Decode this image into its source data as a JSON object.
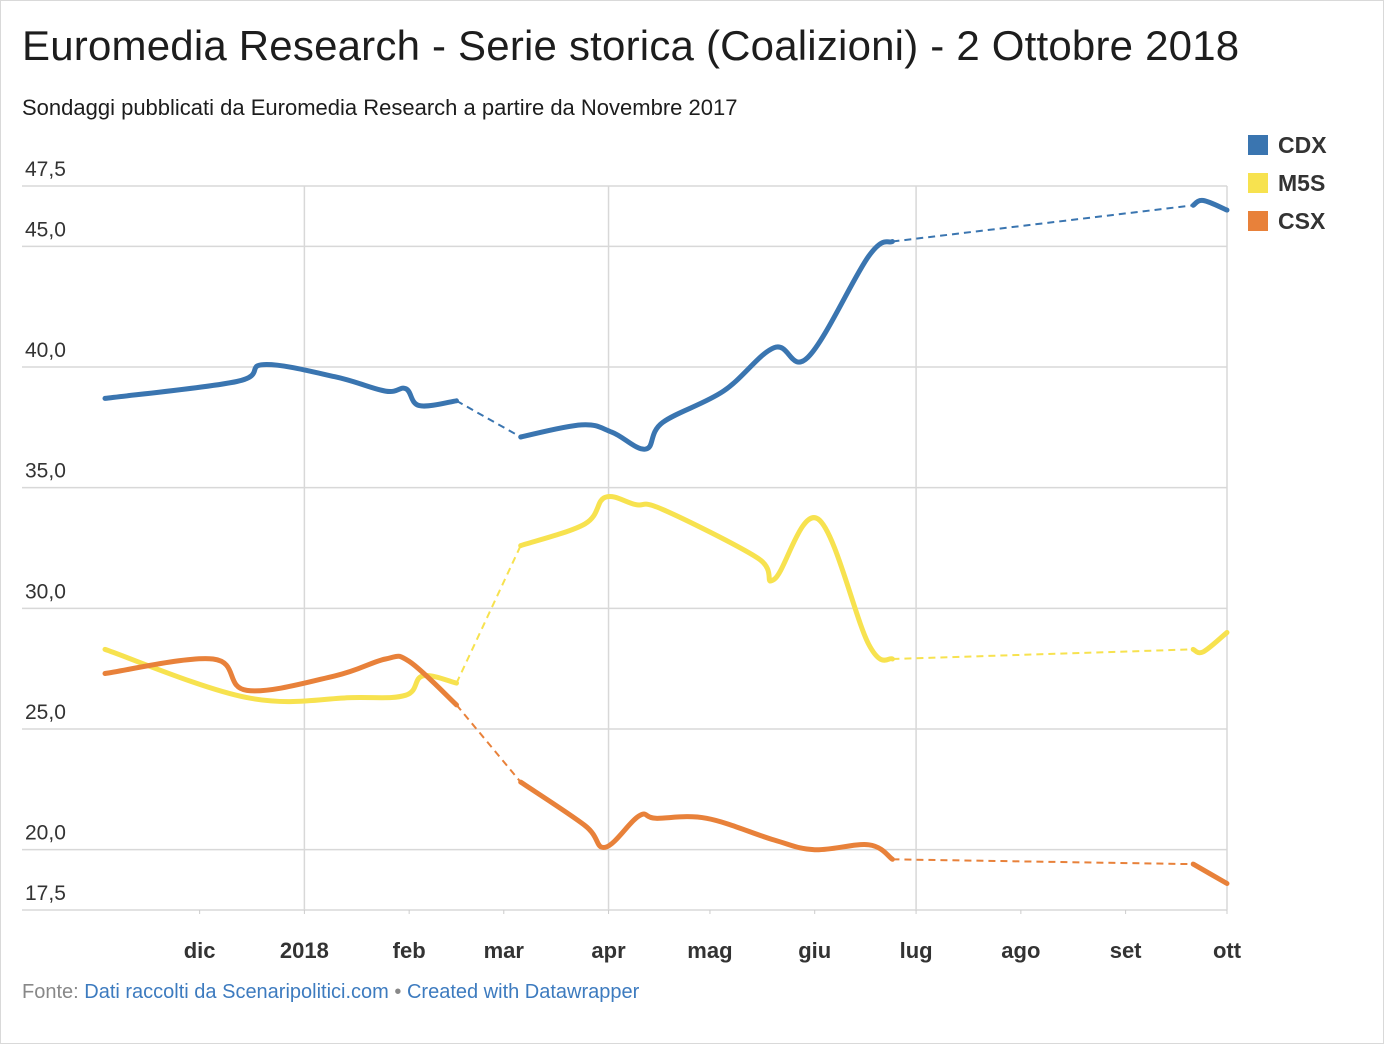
{
  "header": {
    "title": "Euromedia Research - Serie storica (Coalizioni) - 2 Ottobre 2018",
    "subtitle": "Sondaggi pubblicati da Euromedia Research a partire da Novembre 2017"
  },
  "footer": {
    "source_label": "Fonte:",
    "source_link": "Dati raccolti da Scenaripolitici.com",
    "separator": "•",
    "credit_link": "Created with Datawrapper"
  },
  "chart_data": {
    "type": "line",
    "title": "Euromedia Research - Serie storica (Coalizioni) - 2 Ottobre 2018",
    "subtitle": "Sondaggi pubblicati da Euromedia Research a partire da Novembre 2017",
    "xlabel": "",
    "ylabel": "",
    "ylim": [
      17.5,
      47.5
    ],
    "xlim": [
      "2017-11-03",
      "2018-10-01"
    ],
    "y_ticks": [
      17.5,
      20.0,
      25.0,
      30.0,
      35.0,
      40.0,
      45.0,
      47.5
    ],
    "y_tick_labels": [
      "17,5",
      "20,0",
      "25,0",
      "30,0",
      "35,0",
      "40,0",
      "45,0",
      "47,5"
    ],
    "x_ticks": [
      {
        "label": "dic",
        "date": "2017-12-01"
      },
      {
        "label": "2018",
        "date": "2018-01-01"
      },
      {
        "label": "feb",
        "date": "2018-02-01"
      },
      {
        "label": "mar",
        "date": "2018-03-01"
      },
      {
        "label": "apr",
        "date": "2018-04-01"
      },
      {
        "label": "mag",
        "date": "2018-05-01"
      },
      {
        "label": "giu",
        "date": "2018-06-01"
      },
      {
        "label": "lug",
        "date": "2018-07-01"
      },
      {
        "label": "ago",
        "date": "2018-08-01"
      },
      {
        "label": "set",
        "date": "2018-09-01"
      },
      {
        "label": "ott",
        "date": "2018-10-01"
      }
    ],
    "grid_x_lines": [
      "2018-01-01",
      "2018-04-01",
      "2018-07-01",
      "2018-10-01"
    ],
    "grid": true,
    "legend_position": "top-right",
    "series": [
      {
        "name": "CDX",
        "color": "#3a75b0",
        "points": [
          [
            "2017-11-03",
            38.7
          ],
          [
            "2017-12-12",
            39.4
          ],
          [
            "2017-12-20",
            40.1
          ],
          [
            "2018-01-10",
            39.6
          ],
          [
            "2018-01-25",
            39.0
          ],
          [
            "2018-01-31",
            39.1
          ],
          [
            "2018-02-04",
            38.4
          ],
          [
            "2018-02-15",
            38.6
          ],
          [
            "2018-03-06",
            37.1
          ],
          [
            "2018-03-24",
            37.6
          ],
          [
            "2018-04-02",
            37.3
          ],
          [
            "2018-04-12",
            36.6
          ],
          [
            "2018-04-17",
            37.7
          ],
          [
            "2018-05-05",
            39.0
          ],
          [
            "2018-05-20",
            40.8
          ],
          [
            "2018-05-30",
            40.4
          ],
          [
            "2018-06-17",
            44.6
          ],
          [
            "2018-06-24",
            45.2
          ],
          [
            "2018-09-21",
            46.7
          ],
          [
            "2018-09-24",
            46.9
          ],
          [
            "2018-10-01",
            46.5
          ]
        ],
        "gaps_dashed": [
          [
            "2018-02-15",
            "2018-03-06"
          ],
          [
            "2018-06-24",
            "2018-09-21"
          ]
        ]
      },
      {
        "name": "M5S",
        "color": "#f7e24f",
        "points": [
          [
            "2017-11-03",
            28.3
          ],
          [
            "2017-12-15",
            26.3
          ],
          [
            "2018-01-15",
            26.3
          ],
          [
            "2018-01-31",
            26.4
          ],
          [
            "2018-02-05",
            27.2
          ],
          [
            "2018-02-15",
            26.9
          ],
          [
            "2018-03-06",
            32.6
          ],
          [
            "2018-03-25",
            33.5
          ],
          [
            "2018-03-31",
            34.6
          ],
          [
            "2018-04-09",
            34.3
          ],
          [
            "2018-04-17",
            34.1
          ],
          [
            "2018-05-15",
            32.1
          ],
          [
            "2018-05-20",
            31.2
          ],
          [
            "2018-06-02",
            33.7
          ],
          [
            "2018-06-17",
            28.5
          ],
          [
            "2018-06-24",
            27.9
          ],
          [
            "2018-09-21",
            28.3
          ],
          [
            "2018-09-24",
            28.2
          ],
          [
            "2018-10-01",
            29.0
          ]
        ],
        "gaps_dashed": [
          [
            "2018-02-15",
            "2018-03-06"
          ],
          [
            "2018-06-24",
            "2018-09-21"
          ]
        ]
      },
      {
        "name": "CSX",
        "color": "#e8813a",
        "points": [
          [
            "2017-11-03",
            27.3
          ],
          [
            "2017-12-05",
            27.9
          ],
          [
            "2017-12-15",
            26.6
          ],
          [
            "2018-01-10",
            27.2
          ],
          [
            "2018-01-25",
            27.9
          ],
          [
            "2018-02-01",
            27.8
          ],
          [
            "2018-02-15",
            26.0
          ],
          [
            "2018-03-06",
            22.8
          ],
          [
            "2018-03-25",
            21.0
          ],
          [
            "2018-03-31",
            20.1
          ],
          [
            "2018-04-10",
            21.4
          ],
          [
            "2018-04-15",
            21.3
          ],
          [
            "2018-04-30",
            21.3
          ],
          [
            "2018-05-20",
            20.4
          ],
          [
            "2018-06-01",
            20.0
          ],
          [
            "2018-06-17",
            20.2
          ],
          [
            "2018-06-24",
            19.6
          ],
          [
            "2018-09-21",
            19.4
          ],
          [
            "2018-10-01",
            18.6
          ]
        ],
        "gaps_dashed": [
          [
            "2018-02-15",
            "2018-03-06"
          ],
          [
            "2018-06-24",
            "2018-09-21"
          ]
        ]
      }
    ]
  }
}
